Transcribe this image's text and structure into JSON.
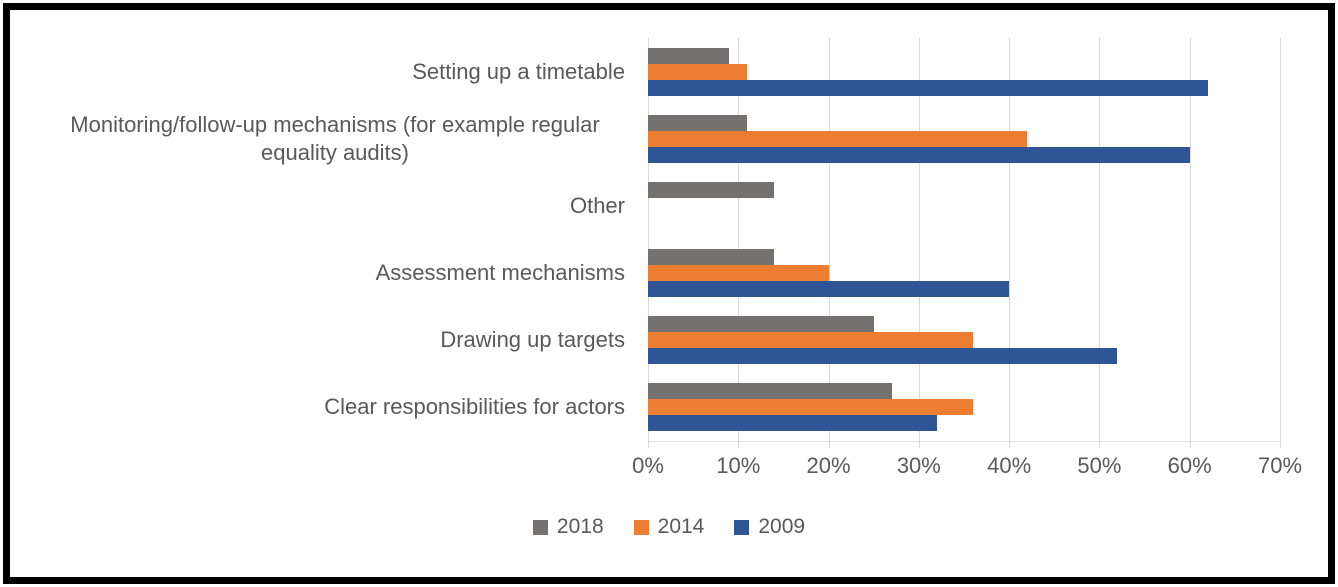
{
  "chart_data": {
    "type": "bar",
    "orientation": "horizontal",
    "title": "",
    "categories": [
      "Setting up a timetable",
      "Monitoring/follow-up mechanisms (for example regular equality audits)",
      "Other",
      "Assessment mechanisms",
      "Drawing up targets",
      "Clear responsibilities for actors"
    ],
    "series": [
      {
        "name": "2018",
        "color": "#767171",
        "values": [
          9,
          11,
          14,
          14,
          25,
          27
        ]
      },
      {
        "name": "2014",
        "color": "#ED7D31",
        "values": [
          11,
          42,
          0,
          20,
          36,
          36
        ]
      },
      {
        "name": "2009",
        "color": "#2F5597",
        "values": [
          62,
          60,
          0,
          40,
          52,
          32
        ]
      }
    ],
    "x_axis": {
      "min": 0,
      "max": 70,
      "tick_step": 10,
      "tick_labels": [
        "0%",
        "10%",
        "20%",
        "30%",
        "40%",
        "50%",
        "60%",
        "70%"
      ],
      "grid": true
    },
    "legend": {
      "position": "bottom",
      "entries": [
        "2018",
        "2014",
        "2009"
      ]
    }
  },
  "colors": {
    "gridline": "#D9D9D9",
    "axis_text": "#595959",
    "label_text": "#595959",
    "frame_border": "#000000",
    "background": "#FFFFFF"
  }
}
